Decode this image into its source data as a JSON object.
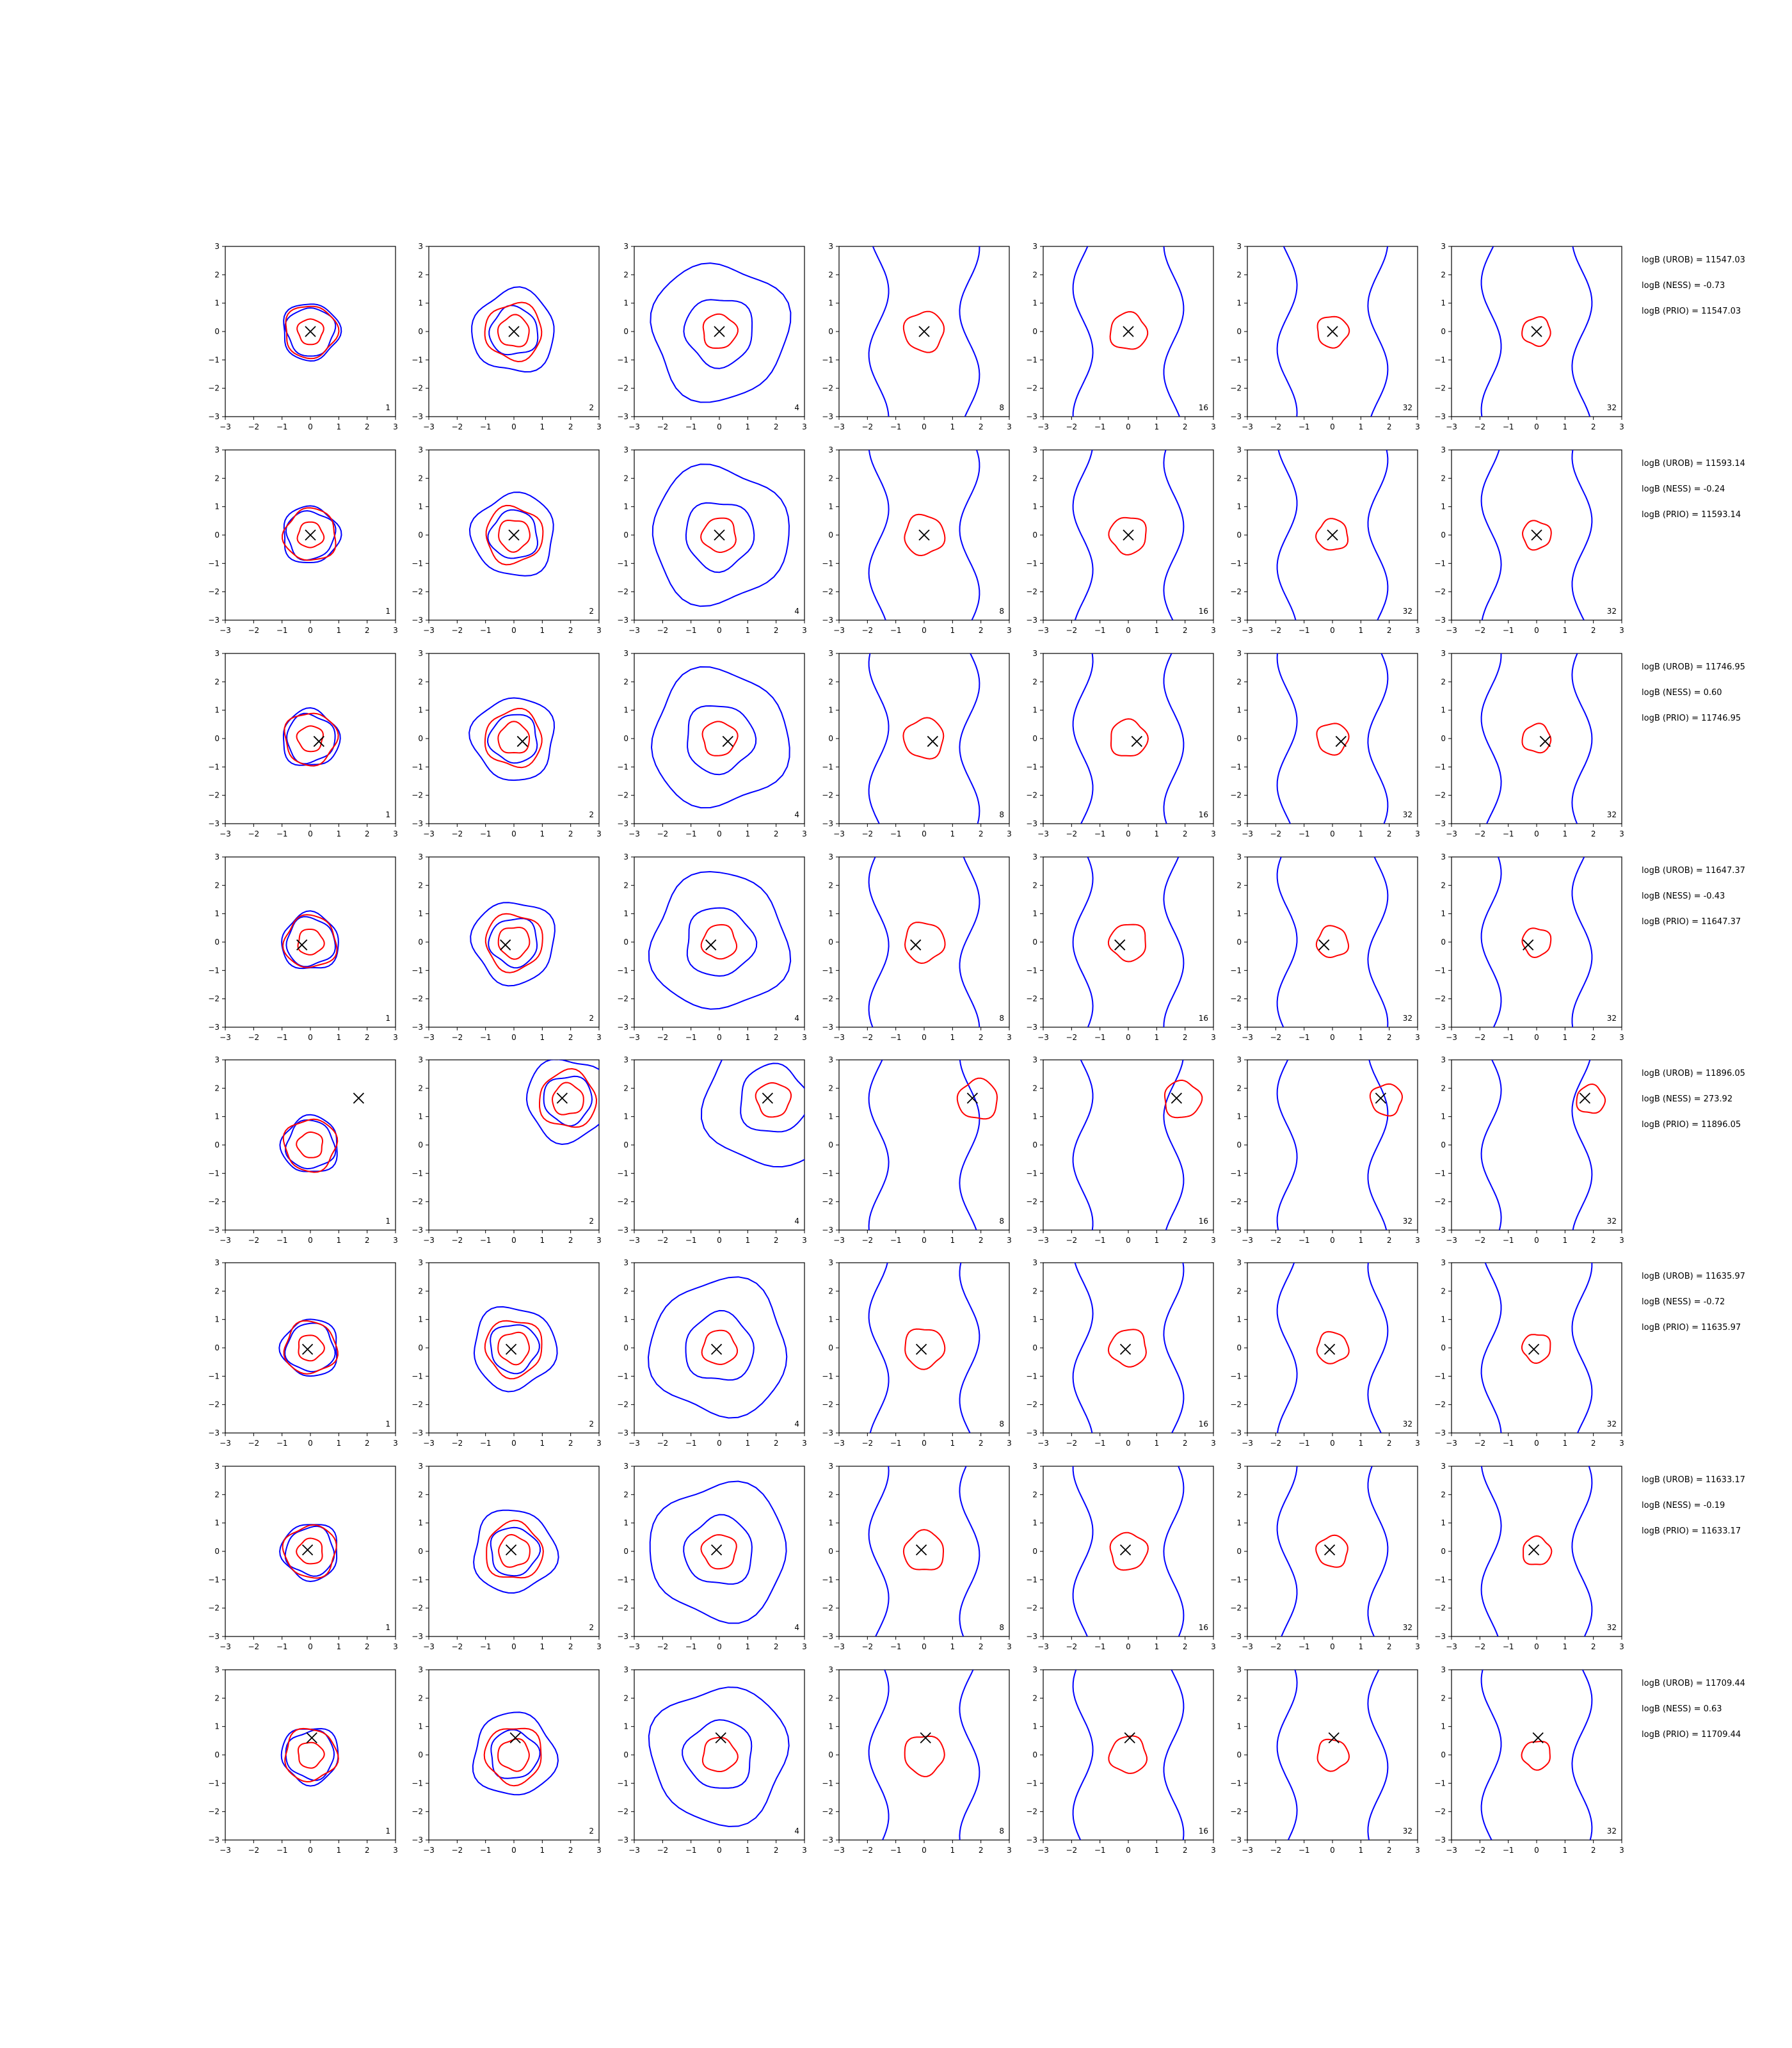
{
  "chart_data": {
    "type": "contour-grid",
    "xlim": [
      -3,
      3
    ],
    "ylim": [
      -3,
      3
    ],
    "ticks": [
      "−3",
      "−2",
      "−1",
      "0",
      "1",
      "2",
      "3"
    ],
    "colors": {
      "outer_contour": "#0000ff",
      "inner_contour": "#ff0000",
      "marker": "#000000"
    },
    "marker": "cross",
    "columns": [
      {
        "label": "1",
        "blue": [
          0.85,
          1.0
        ],
        "red": [
          0.45,
          0.92
        ]
      },
      {
        "label": "2",
        "blue": [
          0.85,
          1.45
        ],
        "red": [
          0.55,
          1.0
        ]
      },
      {
        "label": "4",
        "blue": [
          1.2,
          2.4
        ],
        "red": [
          0.6
        ]
      },
      {
        "label": "8",
        "blue": [],
        "red": [
          0.7
        ]
      },
      {
        "label": "16",
        "blue": [],
        "red": [
          0.65
        ]
      },
      {
        "label": "32",
        "blue": [],
        "red": [
          0.55
        ]
      },
      {
        "label": "32",
        "blue": [],
        "red": [
          0.5
        ]
      }
    ],
    "rows": [
      {
        "marker": [
          0.0,
          0.0
        ],
        "annotations": [
          "logB (UROB) = 11547.03",
          "logB (NESS) = -0.73",
          "logB (PRIO) = 11547.03"
        ]
      },
      {
        "marker": [
          0.0,
          0.0
        ],
        "annotations": [
          "logB (UROB) = 11593.14",
          "logB (NESS) = -0.24",
          "logB (PRIO) = 11593.14"
        ]
      },
      {
        "marker": [
          0.3,
          -0.1
        ],
        "annotations": [
          "logB (UROB) = 11746.95",
          "logB (NESS) = 0.60",
          "logB (PRIO) = 11746.95"
        ]
      },
      {
        "marker": [
          -0.3,
          -0.1
        ],
        "annotations": [
          "logB (UROB) = 11647.37",
          "logB (NESS) = -0.43",
          "logB (PRIO) = 11647.37"
        ]
      },
      {
        "marker": [
          1.7,
          1.65
        ],
        "annotations": [
          "logB (UROB) = 11896.05",
          "logB (NESS) = 273.92",
          "logB (PRIO) = 11896.05"
        ]
      },
      {
        "marker": [
          -0.1,
          -0.05
        ],
        "annotations": [
          "logB (UROB) = 11635.97",
          "logB (NESS) = -0.72",
          "logB (PRIO) = 11635.97"
        ]
      },
      {
        "marker": [
          -0.1,
          0.05
        ],
        "annotations": [
          "logB (UROB) = 11633.17",
          "logB (NESS) = -0.19",
          "logB (PRIO) = 11633.17"
        ]
      },
      {
        "marker": [
          0.05,
          0.6
        ],
        "annotations": [
          "logB (UROB) = 11709.44",
          "logB (NESS) = 0.63",
          "logB (PRIO) = 11709.44"
        ]
      }
    ]
  }
}
